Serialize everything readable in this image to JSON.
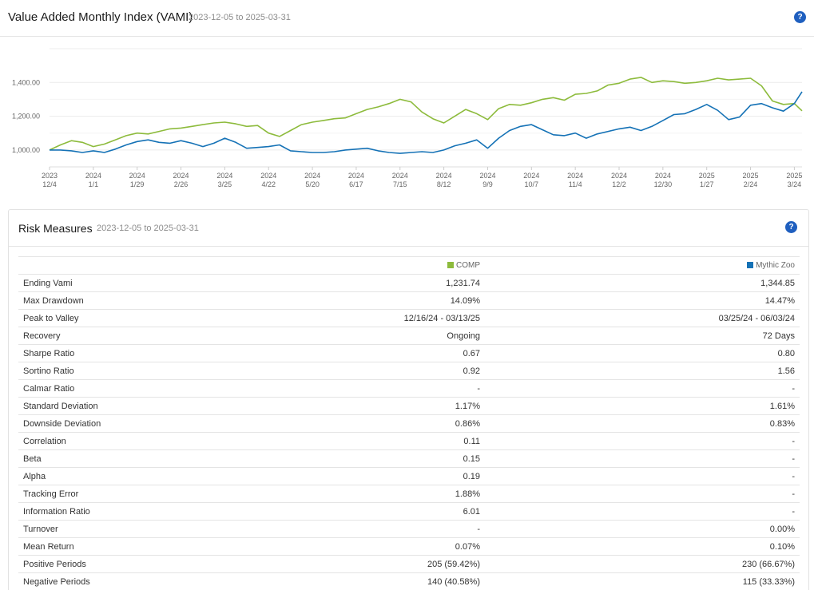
{
  "vami": {
    "title": "Value Added Monthly Index (VAMI)",
    "date_range": "2023-12-05 to 2025-03-31",
    "help_label": "?"
  },
  "chart_data": {
    "type": "line",
    "y_ticks": [
      "1,000.00",
      "1,200.00",
      "1,400.00"
    ],
    "y_tick_values": [
      1000,
      1200,
      1400
    ],
    "ylim": [
      900,
      1600
    ],
    "x_ticks": [
      {
        "year": "2023",
        "date": "12/4"
      },
      {
        "year": "2024",
        "date": "1/1"
      },
      {
        "year": "2024",
        "date": "1/29"
      },
      {
        "year": "2024",
        "date": "2/26"
      },
      {
        "year": "2024",
        "date": "3/25"
      },
      {
        "year": "2024",
        "date": "4/22"
      },
      {
        "year": "2024",
        "date": "5/20"
      },
      {
        "year": "2024",
        "date": "6/17"
      },
      {
        "year": "2024",
        "date": "7/15"
      },
      {
        "year": "2024",
        "date": "8/12"
      },
      {
        "year": "2024",
        "date": "9/9"
      },
      {
        "year": "2024",
        "date": "10/7"
      },
      {
        "year": "2024",
        "date": "11/4"
      },
      {
        "year": "2024",
        "date": "12/2"
      },
      {
        "year": "2024",
        "date": "12/30"
      },
      {
        "year": "2025",
        "date": "1/27"
      },
      {
        "year": "2025",
        "date": "2/24"
      },
      {
        "year": "2025",
        "date": "3/24"
      }
    ],
    "x_tick_week_index": [
      0,
      4,
      8,
      12,
      16,
      20,
      24,
      28,
      32,
      36,
      40,
      44,
      48,
      52,
      56,
      60,
      64,
      68
    ],
    "x_max_week": 68.7,
    "grid": true,
    "legend": "none",
    "series": [
      {
        "name": "COMP",
        "color": "#8dbb3c",
        "x": [
          0,
          1,
          2,
          3,
          4,
          5,
          6,
          7,
          8,
          9,
          10,
          11,
          12,
          13,
          14,
          15,
          16,
          17,
          18,
          19,
          20,
          21,
          22,
          23,
          24,
          25,
          26,
          27,
          28,
          29,
          30,
          31,
          32,
          33,
          34,
          35,
          36,
          37,
          38,
          39,
          40,
          41,
          42,
          43,
          44,
          45,
          46,
          47,
          48,
          49,
          50,
          51,
          52,
          53,
          54,
          55,
          56,
          57,
          58,
          59,
          60,
          61,
          62,
          63,
          64,
          65,
          66,
          67,
          68,
          68.7
        ],
        "values": [
          1000,
          1030,
          1055,
          1045,
          1020,
          1035,
          1060,
          1085,
          1100,
          1095,
          1110,
          1125,
          1130,
          1140,
          1150,
          1160,
          1165,
          1155,
          1140,
          1145,
          1100,
          1080,
          1115,
          1150,
          1165,
          1175,
          1185,
          1190,
          1215,
          1240,
          1255,
          1275,
          1300,
          1285,
          1225,
          1185,
          1160,
          1200,
          1240,
          1215,
          1180,
          1245,
          1270,
          1265,
          1280,
          1300,
          1310,
          1295,
          1330,
          1335,
          1350,
          1385,
          1395,
          1420,
          1430,
          1400,
          1410,
          1405,
          1395,
          1400,
          1410,
          1425,
          1415,
          1420,
          1425,
          1380,
          1290,
          1270,
          1275,
          1232
        ]
      },
      {
        "name": "Mythic Zoo",
        "color": "#1572b6",
        "x": [
          0,
          1,
          2,
          3,
          4,
          5,
          6,
          7,
          8,
          9,
          10,
          11,
          12,
          13,
          14,
          15,
          16,
          17,
          18,
          19,
          20,
          21,
          22,
          23,
          24,
          25,
          26,
          27,
          28,
          29,
          30,
          31,
          32,
          33,
          34,
          35,
          36,
          37,
          38,
          39,
          40,
          41,
          42,
          43,
          44,
          45,
          46,
          47,
          48,
          49,
          50,
          51,
          52,
          53,
          54,
          55,
          56,
          57,
          58,
          59,
          60,
          61,
          62,
          63,
          64,
          65,
          66,
          67,
          68,
          68.7
        ],
        "values": [
          1000,
          1000,
          995,
          985,
          995,
          985,
          1005,
          1030,
          1050,
          1060,
          1045,
          1040,
          1055,
          1040,
          1020,
          1040,
          1070,
          1045,
          1010,
          1015,
          1020,
          1030,
          995,
          990,
          985,
          985,
          990,
          1000,
          1005,
          1010,
          995,
          985,
          980,
          985,
          990,
          985,
          1000,
          1025,
          1040,
          1060,
          1010,
          1070,
          1115,
          1140,
          1150,
          1120,
          1090,
          1085,
          1100,
          1070,
          1095,
          1110,
          1125,
          1135,
          1115,
          1140,
          1175,
          1210,
          1215,
          1240,
          1270,
          1235,
          1180,
          1195,
          1265,
          1275,
          1250,
          1230,
          1275,
          1345
        ]
      }
    ]
  },
  "risk": {
    "title": "Risk Measures",
    "date_range": "2023-12-05 to 2025-03-31",
    "help_label": "?",
    "col_comp": "COMP",
    "col_zoo": "Mythic Zoo",
    "rows": [
      {
        "label": "Ending Vami",
        "comp": "1,231.74",
        "zoo": "1,344.85"
      },
      {
        "label": "Max Drawdown",
        "comp": "14.09%",
        "zoo": "14.47%"
      },
      {
        "label": "Peak to Valley",
        "comp": "12/16/24 - 03/13/25",
        "zoo": "03/25/24 - 06/03/24"
      },
      {
        "label": "Recovery",
        "comp": "Ongoing",
        "zoo": "72 Days"
      },
      {
        "label": "Sharpe Ratio",
        "comp": "0.67",
        "zoo": "0.80"
      },
      {
        "label": "Sortino Ratio",
        "comp": "0.92",
        "zoo": "1.56"
      },
      {
        "label": "Calmar Ratio",
        "comp": "-",
        "zoo": "-"
      },
      {
        "label": "Standard Deviation",
        "comp": "1.17%",
        "zoo": "1.61%"
      },
      {
        "label": "Downside Deviation",
        "comp": "0.86%",
        "zoo": "0.83%"
      },
      {
        "label": "Correlation",
        "comp": "0.11",
        "zoo": "-"
      },
      {
        "label": "Beta",
        "comp": "0.15",
        "zoo": "-"
      },
      {
        "label": "Alpha",
        "comp": "0.19",
        "zoo": "-"
      },
      {
        "label": "Tracking Error",
        "comp": "1.88%",
        "zoo": "-"
      },
      {
        "label": "Information Ratio",
        "comp": "6.01",
        "zoo": "-"
      },
      {
        "label": "Turnover",
        "comp": "-",
        "zoo": "0.00%"
      },
      {
        "label": "Mean Return",
        "comp": "0.07%",
        "zoo": "0.10%"
      },
      {
        "label": "Positive Periods",
        "comp": "205 (59.42%)",
        "zoo": "230 (66.67%)"
      },
      {
        "label": "Negative Periods",
        "comp": "140 (40.58%)",
        "zoo": "115 (33.33%)"
      }
    ]
  }
}
